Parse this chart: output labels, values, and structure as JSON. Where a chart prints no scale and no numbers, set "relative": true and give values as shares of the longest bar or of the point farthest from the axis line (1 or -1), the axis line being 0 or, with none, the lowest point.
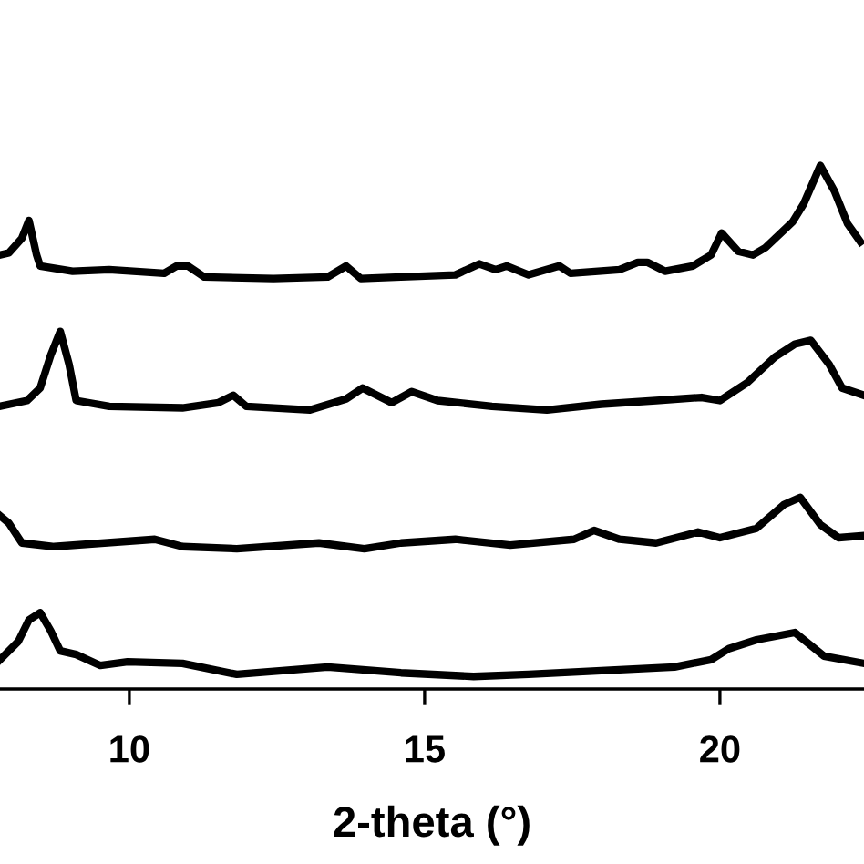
{
  "chart_data": {
    "type": "line",
    "relative": true,
    "xlabel": "2-theta (°)",
    "xlim": [
      7.81,
      22.44
    ],
    "xticks": [
      10,
      15,
      20
    ],
    "grid": false,
    "line_style": "solid",
    "marker": "none",
    "series": [
      {
        "color": "#000000",
        "x": [
          7.81,
          7.96,
          8.18,
          8.3,
          8.43,
          8.49,
          9.04,
          9.66,
          10.59,
          10.8,
          10.99,
          11.27,
          12.44,
          13.36,
          13.67,
          13.92,
          14.6,
          15.52,
          15.93,
          16.2,
          16.39,
          16.76,
          17.28,
          17.47,
          18.3,
          18.61,
          18.77,
          19.07,
          19.54,
          19.85,
          20.03,
          20.31,
          20.56,
          20.77,
          21.23,
          21.42,
          21.7,
          21.94,
          22.16,
          22.38
        ],
        "values": [
          0.829,
          0.833,
          0.861,
          0.895,
          0.829,
          0.808,
          0.798,
          0.801,
          0.794,
          0.808,
          0.808,
          0.787,
          0.784,
          0.787,
          0.808,
          0.784,
          0.787,
          0.791,
          0.812,
          0.801,
          0.808,
          0.791,
          0.808,
          0.794,
          0.801,
          0.815,
          0.815,
          0.798,
          0.808,
          0.829,
          0.871,
          0.836,
          0.829,
          0.843,
          0.892,
          0.927,
          1.0,
          0.951,
          0.889,
          0.854
        ]
      },
      {
        "color": "#000000",
        "x": [
          7.81,
          8.27,
          8.49,
          8.67,
          8.83,
          8.98,
          9.1,
          9.66,
          10.9,
          11.51,
          11.76,
          11.98,
          13.06,
          13.67,
          13.95,
          14.44,
          14.78,
          15.22,
          16.14,
          17.07,
          17.99,
          18.92,
          19.69,
          20.0,
          20.46,
          20.93,
          21.27,
          21.54,
          21.85,
          22.07,
          22.44
        ],
        "values": [
          0.54,
          0.551,
          0.575,
          0.638,
          0.683,
          0.62,
          0.551,
          0.54,
          0.537,
          0.547,
          0.561,
          0.54,
          0.533,
          0.554,
          0.575,
          0.547,
          0.568,
          0.551,
          0.54,
          0.533,
          0.544,
          0.551,
          0.557,
          0.551,
          0.585,
          0.634,
          0.659,
          0.666,
          0.62,
          0.575,
          0.561
        ]
      },
      {
        "color": "#000000",
        "x": [
          7.81,
          7.96,
          8.18,
          8.73,
          10.43,
          10.9,
          11.82,
          13.21,
          13.98,
          14.6,
          15.52,
          16.45,
          17.53,
          17.87,
          18.3,
          18.92,
          19.63,
          20.0,
          20.62,
          21.08,
          21.36,
          21.7,
          22.01,
          22.44
        ],
        "values": [
          0.331,
          0.317,
          0.279,
          0.272,
          0.286,
          0.272,
          0.268,
          0.279,
          0.268,
          0.279,
          0.286,
          0.275,
          0.286,
          0.303,
          0.286,
          0.279,
          0.3,
          0.289,
          0.307,
          0.352,
          0.366,
          0.314,
          0.289,
          0.293
        ]
      },
      {
        "color": "#000000",
        "x": [
          7.81,
          8.12,
          8.3,
          8.49,
          8.67,
          8.83,
          9.1,
          9.51,
          9.97,
          10.9,
          11.82,
          13.36,
          14.6,
          15.83,
          16.76,
          17.99,
          19.23,
          19.85,
          20.15,
          20.62,
          21.27,
          21.76,
          22.44
        ],
        "values": [
          0.056,
          0.091,
          0.132,
          0.146,
          0.111,
          0.073,
          0.066,
          0.045,
          0.052,
          0.049,
          0.028,
          0.042,
          0.031,
          0.024,
          0.028,
          0.035,
          0.042,
          0.056,
          0.077,
          0.094,
          0.108,
          0.063,
          0.049
        ]
      }
    ]
  }
}
